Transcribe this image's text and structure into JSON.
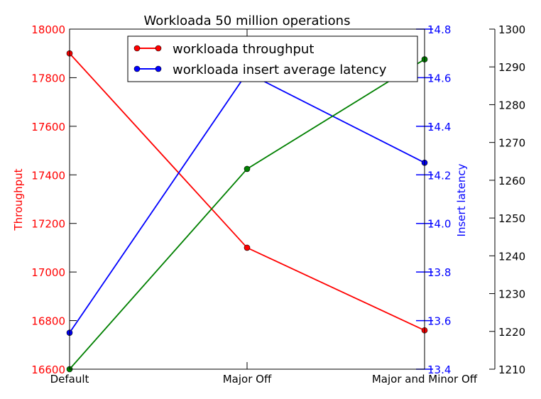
{
  "chart_data": {
    "type": "line",
    "title": "Workloada 50 million operations",
    "categories": [
      "Default",
      "Major Off",
      "Major and Minor Off"
    ],
    "axes": {
      "left": {
        "label": "Throughput",
        "ylim": [
          16600,
          18000
        ],
        "ticks": [
          "16600",
          "16800",
          "17000",
          "17200",
          "17400",
          "17600",
          "17800",
          "18000"
        ],
        "color": "#ff0000"
      },
      "right": {
        "label": "Insert latency",
        "ylim": [
          13.4,
          14.8
        ],
        "ticks": [
          "13.4",
          "13.6",
          "13.8",
          "14.0",
          "14.2",
          "14.4",
          "14.6",
          "14.8"
        ],
        "color": "#0000ff"
      },
      "far_right": {
        "label": "",
        "ylim": [
          1210,
          1300
        ],
        "ticks": [
          "1210",
          "1220",
          "1230",
          "1240",
          "1250",
          "1260",
          "1270",
          "1280",
          "1290",
          "1300"
        ],
        "color": "#000000"
      }
    },
    "series": [
      {
        "name": "workloada throughput",
        "axis": "left",
        "color": "#ff0000",
        "values": [
          17900,
          17100,
          16760
        ]
      },
      {
        "name": "workloada insert average latency",
        "axis": "right",
        "color": "#0000ff",
        "values": [
          13.55,
          14.62,
          14.25
        ]
      },
      {
        "name": "",
        "axis": "far_right",
        "color": "#008000",
        "values": [
          1210,
          1263,
          1292
        ]
      }
    ],
    "legend": {
      "placement": "top-center"
    },
    "grid": false
  }
}
